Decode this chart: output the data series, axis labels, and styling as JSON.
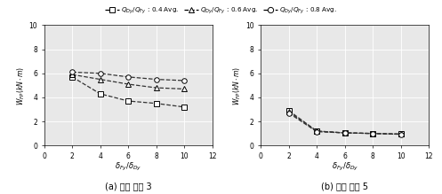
{
  "x": [
    2,
    4,
    6,
    8,
    10
  ],
  "left_series": {
    "s04": [
      5.7,
      4.3,
      3.7,
      3.5,
      3.2
    ],
    "s06": [
      5.9,
      5.5,
      5.1,
      4.8,
      4.7
    ],
    "s08": [
      6.1,
      6.0,
      5.7,
      5.5,
      5.4
    ]
  },
  "right_series": {
    "s04": [
      2.9,
      1.2,
      1.05,
      1.0,
      0.95
    ],
    "s06": [
      2.8,
      1.2,
      1.05,
      1.0,
      0.95
    ],
    "s08": [
      2.7,
      1.15,
      1.05,
      1.0,
      0.93
    ]
  },
  "legend_labels": [
    "$Q_{Dy}/Q_{Fy}$ : 0.4 Avg.",
    "$Q_{Dy}/Q_{Fy}$ : 0.6 Avg.",
    "$Q_{Dy}/Q_{Fy}$ : 0.8 Avg."
  ],
  "xlabel": "$\\delta_{Fy}/\\delta_{Dy}$",
  "ylabel_left": "$W_{FP}(kN\\cdot m)$",
  "ylabel_right": "$W_{FP}(kN\\cdot m)$",
  "xlim": [
    0,
    12
  ],
  "ylim": [
    0,
    10
  ],
  "xticks": [
    0,
    2,
    4,
    6,
    8,
    10,
    12
  ],
  "yticks": [
    0,
    2,
    4,
    6,
    8,
    10
  ],
  "caption_left": "(a) 주기 비율 3",
  "caption_right": "(b) 주기 비율 5",
  "bg_color": "#e8e8e8",
  "grid_color": "#ffffff",
  "line_color": "#333333"
}
